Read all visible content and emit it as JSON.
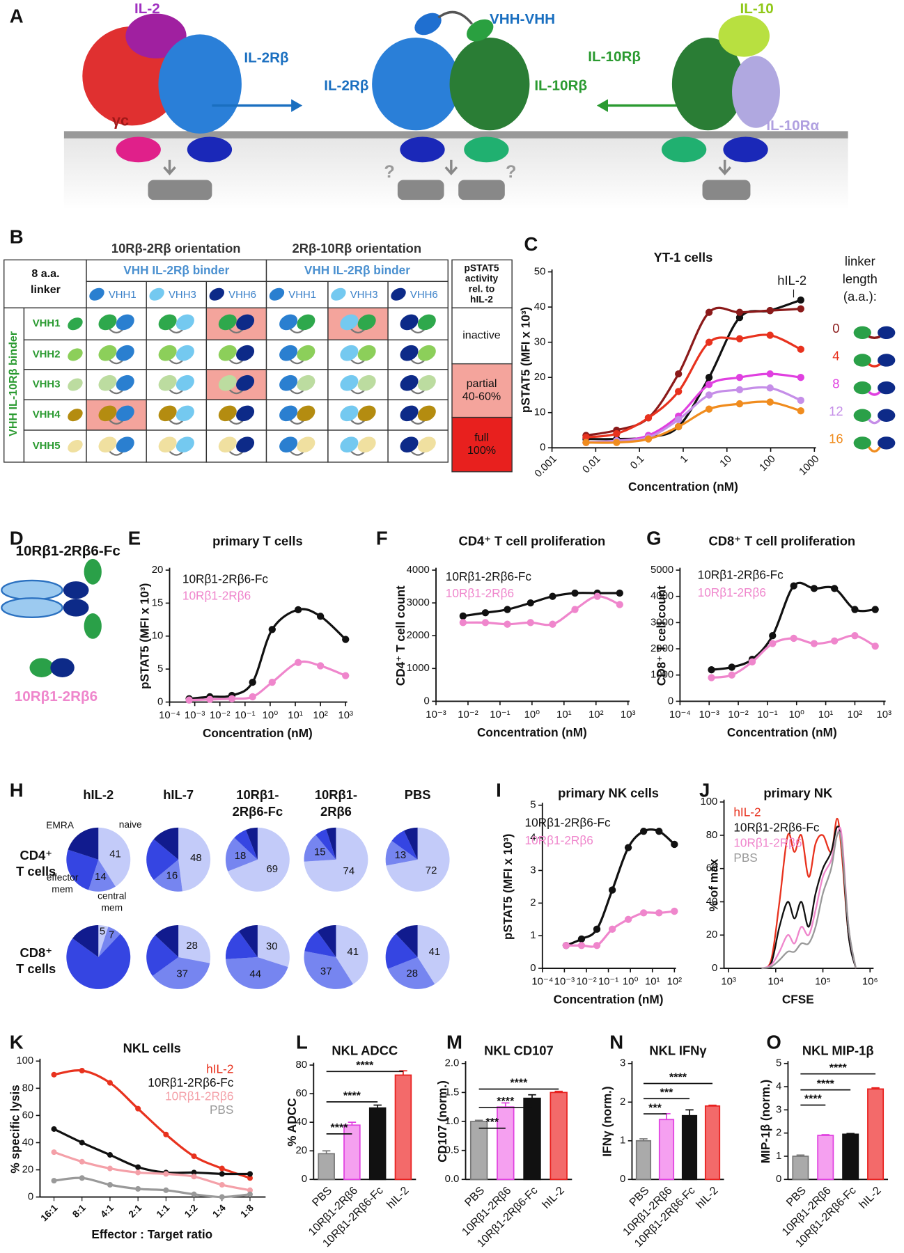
{
  "diagram_a": {
    "panel": "A",
    "labels": {
      "il2": "IL-2",
      "il2rb_left": "IL-2Rβ",
      "gc": "γc",
      "vhh": "VHH-VHH",
      "il2rb_mid": "IL-2Rβ",
      "il10rb_mid": "IL-10Rβ",
      "il10": "IL-10",
      "il10rb_right": "IL-10Rβ",
      "il10ra": "IL-10Rα"
    },
    "question_marks": [
      "?",
      "?"
    ]
  },
  "table_b": {
    "panel": "B",
    "corner": [
      "8 a.a.",
      "linker"
    ],
    "orientations": [
      "10Rβ-2Rβ orientation",
      "2Rβ-10Rβ orientation"
    ],
    "column_groups": [
      "VHH IL-2Rβ binder",
      "VHH IL-2Rβ binder"
    ],
    "columns": [
      "VHH1",
      "VHH3",
      "VHH6",
      "VHH1",
      "VHH3",
      "VHH6"
    ],
    "row_group": "VHH IL-10Rβ binder",
    "rows": [
      "VHH1",
      "VHH2",
      "VHH3",
      "VHH4",
      "VHH5"
    ],
    "highlight": [
      [
        false,
        false,
        true,
        false,
        true,
        false
      ],
      [
        false,
        false,
        false,
        false,
        false,
        false
      ],
      [
        false,
        false,
        true,
        false,
        false,
        false
      ],
      [
        true,
        false,
        false,
        false,
        false,
        false
      ],
      [
        false,
        false,
        false,
        false,
        false,
        false
      ]
    ],
    "legend": {
      "title": [
        "pSTAT5",
        "activity",
        "rel. to",
        "hIL-2"
      ],
      "entries": [
        [
          "inactive"
        ],
        [
          "partial",
          "40-60%"
        ],
        [
          "full",
          "100%"
        ]
      ]
    }
  },
  "panel_d": {
    "panel": "D",
    "labels": [
      "10Rβ1-2Rβ6-Fc",
      "10Rβ1-2Rβ6"
    ]
  },
  "chart_data": [
    {
      "type": "line",
      "panel": "C",
      "title": "YT-1 cells",
      "xlabel": "Concentration (nM)",
      "ylabel": "pSTAT5 (MFI x 10³)",
      "xscale": "log",
      "xlim": [
        0.001,
        1000
      ],
      "xticks": [
        0.001,
        0.01,
        0.1,
        1,
        10,
        100,
        1000
      ],
      "ylim": [
        0,
        50
      ],
      "yticks": [
        0,
        10,
        20,
        30,
        40,
        50
      ],
      "legend_title": [
        "linker",
        "length",
        "(a.a.):"
      ],
      "x": [
        0.006,
        0.03,
        0.16,
        0.78,
        3.9,
        19.5,
        97,
        488
      ],
      "series": [
        {
          "name": "hIL-2",
          "color": "#111111",
          "values": [
            2.5,
            2.5,
            3,
            6,
            20,
            37,
            39,
            42
          ]
        },
        {
          "name": "0",
          "color": "#8b1a1a",
          "values": [
            3.5,
            5,
            8.5,
            21,
            38.5,
            38.5,
            39,
            39.5
          ]
        },
        {
          "name": "4",
          "color": "#e8321e",
          "values": [
            3,
            4,
            8.5,
            16,
            30,
            31,
            32,
            28
          ]
        },
        {
          "name": "8",
          "color": "#e040e0",
          "values": [
            1.5,
            2,
            3.5,
            9,
            18,
            20,
            21,
            20
          ]
        },
        {
          "name": "12",
          "color": "#c58ee8",
          "values": [
            1.5,
            2,
            3,
            8,
            15,
            16.5,
            17,
            13.5
          ]
        },
        {
          "name": "16",
          "color": "#f08c1e",
          "values": [
            1.5,
            1.5,
            2.5,
            6,
            11,
            12.5,
            13,
            10.5
          ]
        }
      ]
    },
    {
      "type": "line",
      "panel": "E",
      "title": "primary T cells",
      "xlabel": "Concentration (nM)",
      "ylabel": "pSTAT5 (MFI x 10³)",
      "xscale": "log",
      "xlim": [
        0.0001,
        1000
      ],
      "xticks": [
        {
          "value": 0.0001,
          "label": "10⁻⁴"
        },
        {
          "value": 0.001,
          "label": "10⁻³"
        },
        {
          "value": 0.01,
          "label": "10⁻²"
        },
        {
          "value": 0.1,
          "label": "10⁻¹"
        },
        {
          "value": 1,
          "label": "10⁰"
        },
        {
          "value": 10,
          "label": "10¹"
        },
        {
          "value": 100,
          "label": "10²"
        },
        {
          "value": 1000,
          "label": "10³"
        }
      ],
      "ylim": [
        0,
        20
      ],
      "yticks": [
        0,
        5,
        10,
        15,
        20
      ],
      "x": [
        0.0006,
        0.004,
        0.03,
        0.2,
        1.2,
        13,
        100,
        1000
      ],
      "series": [
        {
          "name": "10Rβ1-2Rβ6-Fc",
          "color": "#111111",
          "values": [
            0.5,
            0.8,
            1,
            3,
            11,
            14,
            13,
            9.5
          ]
        },
        {
          "name": "10Rβ1-2Rβ6",
          "color": "#ef86cc",
          "values": [
            0.3,
            0.4,
            0.5,
            0.8,
            3,
            6,
            5.5,
            4
          ]
        }
      ]
    },
    {
      "type": "line",
      "panel": "F",
      "title": "CD4⁺ T cell proliferation",
      "xlabel": "Concentration (nM)",
      "ylabel": "CD4⁺ T cell count",
      "xscale": "log",
      "xlim": [
        0.001,
        1000
      ],
      "xticks": [
        {
          "value": 0.001,
          "label": "10⁻³"
        },
        {
          "value": 0.01,
          "label": "10⁻²"
        },
        {
          "value": 0.1,
          "label": "10⁻¹"
        },
        {
          "value": 1,
          "label": "10⁰"
        },
        {
          "value": 10,
          "label": "10¹"
        },
        {
          "value": 100,
          "label": "10²"
        },
        {
          "value": 1000,
          "label": "10³"
        }
      ],
      "ylim": [
        0,
        4000
      ],
      "yticks": [
        0,
        1000,
        2000,
        3000,
        4000
      ],
      "x": [
        0.007,
        0.035,
        0.17,
        0.9,
        4.4,
        22,
        110,
        550
      ],
      "series": [
        {
          "name": "10Rβ1-2Rβ6-Fc",
          "color": "#111111",
          "values": [
            2600,
            2700,
            2800,
            3000,
            3200,
            3300,
            3300,
            3300
          ]
        },
        {
          "name": "10Rβ1-2Rβ6",
          "color": "#ef86cc",
          "values": [
            2400,
            2400,
            2350,
            2400,
            2350,
            2800,
            3200,
            2950
          ]
        }
      ]
    },
    {
      "type": "line",
      "panel": "G",
      "title": "CD8⁺ T cell proliferation",
      "xlabel": "Concentration (nM)",
      "ylabel": "CD8⁺ T cell count",
      "xscale": "log",
      "xlim": [
        0.0001,
        1000
      ],
      "xticks": [
        {
          "value": 0.0001,
          "label": "10⁻⁴"
        },
        {
          "value": 0.001,
          "label": "10⁻³"
        },
        {
          "value": 0.01,
          "label": "10⁻²"
        },
        {
          "value": 0.1,
          "label": "10⁻¹"
        },
        {
          "value": 1,
          "label": "10⁰"
        },
        {
          "value": 10,
          "label": "10¹"
        },
        {
          "value": 100,
          "label": "10²"
        },
        {
          "value": 1000,
          "label": "10³"
        }
      ],
      "ylim": [
        0,
        5000
      ],
      "yticks": [
        0,
        1000,
        2000,
        3000,
        4000,
        5000
      ],
      "x": [
        0.0012,
        0.006,
        0.03,
        0.15,
        0.8,
        4,
        20,
        100,
        500
      ],
      "series": [
        {
          "name": "10Rβ1-2Rβ6-Fc",
          "color": "#111111",
          "values": [
            1200,
            1300,
            1600,
            2500,
            4400,
            4300,
            4300,
            3500,
            3500
          ]
        },
        {
          "name": "10Rβ1-2Rβ6",
          "color": "#ef86cc",
          "values": [
            900,
            1000,
            1500,
            2200,
            2400,
            2200,
            2300,
            2500,
            2100
          ]
        }
      ]
    },
    {
      "type": "pie",
      "panel": "H",
      "columns": [
        [
          "hIL-2"
        ],
        [
          "hIL-7"
        ],
        [
          "10Rβ1-",
          "2Rβ6-Fc"
        ],
        [
          "10Rβ1-",
          "2Rβ6"
        ],
        [
          "PBS"
        ]
      ],
      "rows": [
        [
          "CD4⁺",
          "T cells"
        ],
        [
          "CD8⁺",
          "T cells"
        ]
      ],
      "slice_names": [
        [
          "naive"
        ],
        [
          "central",
          "mem"
        ],
        [
          "effector",
          "mem"
        ],
        [
          "EMRA"
        ]
      ],
      "colors": [
        "#c3cbf9",
        "#7685f0",
        "#3545e2",
        "#111b8e"
      ],
      "values": [
        [
          [
            41,
            14,
            25,
            20
          ],
          [
            48,
            16,
            22,
            14
          ],
          [
            69,
            18,
            7,
            6
          ],
          [
            74,
            15,
            6,
            5
          ],
          [
            72,
            13,
            8,
            7
          ]
        ],
        [
          [
            5,
            7,
            73,
            15
          ],
          [
            28,
            37,
            22,
            13
          ],
          [
            30,
            44,
            16,
            10
          ],
          [
            41,
            37,
            12,
            10
          ],
          [
            41,
            28,
            19,
            12
          ]
        ]
      ]
    },
    {
      "type": "line",
      "panel": "I",
      "title": "primary NK cells",
      "xlabel": "Concentration (nM)",
      "ylabel": "pSTAT5 (MFI x 10³)",
      "xscale": "log",
      "xlim": [
        0.0001,
        100
      ],
      "xticks": [
        {
          "value": 0.0001,
          "label": "10⁻⁴"
        },
        {
          "value": 0.001,
          "label": "10⁻³"
        },
        {
          "value": 0.01,
          "label": "10⁻²"
        },
        {
          "value": 0.1,
          "label": "10⁻¹"
        },
        {
          "value": 1,
          "label": "10⁰"
        },
        {
          "value": 10,
          "label": "10¹"
        },
        {
          "value": 100,
          "label": "10²"
        }
      ],
      "ylim": [
        0,
        5
      ],
      "yticks": [
        0,
        1,
        2,
        3,
        4,
        5
      ],
      "x": [
        0.0012,
        0.006,
        0.03,
        0.15,
        0.8,
        4,
        20,
        100
      ],
      "series": [
        {
          "name": "10Rβ1-2Rβ6-Fc",
          "color": "#111111",
          "values": [
            0.7,
            0.9,
            1.2,
            2.4,
            3.7,
            4.2,
            4.2,
            3.8
          ]
        },
        {
          "name": "10Rβ1-2Rβ6",
          "color": "#ef86cc",
          "values": [
            0.7,
            0.7,
            0.7,
            1.2,
            1.5,
            1.7,
            1.7,
            1.75
          ]
        }
      ]
    },
    {
      "type": "line",
      "panel": "J",
      "title": "primary NK",
      "xlabel": "CFSE",
      "ylabel": "% of max",
      "markers": false,
      "xscale": "log",
      "xlim": [
        800,
        1100000
      ],
      "xticks": [
        {
          "value": 1000,
          "label": "10³"
        },
        {
          "value": 10000,
          "label": "10⁴"
        },
        {
          "value": 100000,
          "label": "10⁵"
        },
        {
          "value": 1000000,
          "label": "10⁶"
        }
      ],
      "ylim": [
        0,
        100
      ],
      "yticks": [
        0,
        20,
        40,
        60,
        80,
        100
      ],
      "x": [
        5000,
        8000,
        12000,
        18000,
        25000,
        35000,
        50000,
        70000,
        100000,
        150000,
        200000,
        250000,
        350000,
        500000
      ],
      "series": [
        {
          "name": "hIL-2",
          "color": "#e8321e",
          "values": [
            0,
            5,
            40,
            80,
            70,
            80,
            55,
            75,
            80,
            70,
            90,
            70,
            20,
            0
          ]
        },
        {
          "name": "10Rβ1-2Rβ6-Fc",
          "color": "#111111",
          "values": [
            0,
            3,
            25,
            40,
            30,
            40,
            25,
            45,
            60,
            70,
            85,
            75,
            20,
            0
          ]
        },
        {
          "name": "10Rβ1-2Rβ6",
          "color": "#ef86cc",
          "values": [
            0,
            2,
            10,
            20,
            15,
            25,
            20,
            35,
            55,
            65,
            80,
            80,
            25,
            0
          ]
        },
        {
          "name": "PBS",
          "color": "#999999",
          "values": [
            0,
            1,
            5,
            10,
            10,
            15,
            15,
            25,
            45,
            60,
            80,
            75,
            25,
            0
          ]
        }
      ]
    },
    {
      "type": "line",
      "panel": "K",
      "title": "NKL cells",
      "xlabel": "Effector : Target ratio",
      "ylabel": "% specific lysis",
      "categories": [
        "16:1",
        "8:1",
        "4:1",
        "2:1",
        "1:1",
        "1:2",
        "1:4",
        "1:8"
      ],
      "ylim": [
        0,
        100
      ],
      "yticks": [
        0,
        20,
        40,
        60,
        80,
        100
      ],
      "series": [
        {
          "name": "hIL-2",
          "color": "#e8321e",
          "values": [
            90,
            93,
            84,
            65,
            46,
            30,
            21,
            14
          ]
        },
        {
          "name": "10Rβ1-2Rβ6-Fc",
          "color": "#111111",
          "values": [
            50,
            40,
            31,
            22,
            18,
            18,
            17,
            17
          ]
        },
        {
          "name": "10Rβ1-2Rβ6",
          "color": "#f4a0a8",
          "values": [
            33,
            26,
            21,
            18,
            17,
            15,
            9,
            5
          ]
        },
        {
          "name": "PBS",
          "color": "#999999",
          "values": [
            12,
            14,
            9,
            6,
            5,
            2,
            0,
            2
          ]
        }
      ]
    },
    {
      "type": "bar",
      "panel": "L",
      "title": "NKL ADCC",
      "ylabel": "% ADCC",
      "categories": [
        "PBS",
        "10Rβ1-2Rβ6",
        "10Rβ1-2Rβ6-Fc",
        "hIL-2"
      ],
      "values": [
        18,
        38,
        50,
        73
      ],
      "errors": [
        2,
        2,
        2,
        3
      ],
      "colors": [
        "#aaaaaa",
        "#f5a0f0",
        "#111111",
        "#f36a6a"
      ],
      "edge_colors": [
        "#777777",
        "#e040e0",
        "#111111",
        "#e8201e"
      ],
      "ylim": [
        0,
        80
      ],
      "yticks": [
        0,
        20,
        40,
        60,
        80
      ],
      "significance": [
        "****",
        "****",
        "****"
      ]
    },
    {
      "type": "bar",
      "panel": "M",
      "title": "NKL CD107",
      "ylabel": "CD107 (norm.)",
      "categories": [
        "PBS",
        "10Rβ1-2Rβ6",
        "10Rβ1-2Rβ6-Fc",
        "hIL-2"
      ],
      "values": [
        1.0,
        1.25,
        1.4,
        1.5
      ],
      "errors": [
        0.02,
        0.07,
        0.06,
        0.02
      ],
      "colors": [
        "#aaaaaa",
        "#f5a0f0",
        "#111111",
        "#f36a6a"
      ],
      "edge_colors": [
        "#777777",
        "#e040e0",
        "#111111",
        "#e8201e"
      ],
      "ylim": [
        0,
        2
      ],
      "yticks": [
        {
          "value": 0,
          "label": "0.0"
        },
        {
          "value": 0.5,
          "label": "0.5"
        },
        {
          "value": 1,
          "label": "1.0"
        },
        {
          "value": 1.5,
          "label": "1.5"
        },
        {
          "value": 2,
          "label": "2.0"
        }
      ],
      "significance": [
        "***",
        "****",
        "****"
      ]
    },
    {
      "type": "bar",
      "panel": "N",
      "title": "NKL IFNγ",
      "ylabel": "IFNγ (norm.)",
      "categories": [
        "PBS",
        "10Rβ1-2Rβ6",
        "10Rβ1-2Rβ6-Fc",
        "hIL-2"
      ],
      "values": [
        1.0,
        1.55,
        1.65,
        1.9
      ],
      "errors": [
        0.05,
        0.15,
        0.15,
        0.02
      ],
      "colors": [
        "#aaaaaa",
        "#f5a0f0",
        "#111111",
        "#f36a6a"
      ],
      "edge_colors": [
        "#777777",
        "#e040e0",
        "#111111",
        "#e8201e"
      ],
      "ylim": [
        0,
        3
      ],
      "yticks": [
        0,
        1,
        2,
        3
      ],
      "significance": [
        "***",
        "***",
        "****"
      ]
    },
    {
      "type": "bar",
      "panel": "O",
      "title": "NKL MIP-1β",
      "ylabel": "MIP-1β (norm.)",
      "categories": [
        "PBS",
        "10Rβ1-2Rβ6",
        "10Rβ1-2Rβ6-Fc",
        "hIL-2"
      ],
      "values": [
        1.0,
        1.9,
        1.95,
        3.9
      ],
      "errors": [
        0.05,
        0.03,
        0.03,
        0.05
      ],
      "colors": [
        "#aaaaaa",
        "#f5a0f0",
        "#111111",
        "#f36a6a"
      ],
      "edge_colors": [
        "#777777",
        "#e040e0",
        "#111111",
        "#e8201e"
      ],
      "ylim": [
        0,
        5
      ],
      "yticks": [
        0,
        1,
        2,
        3,
        4,
        5
      ],
      "significance": [
        "****",
        "****",
        "****"
      ]
    }
  ]
}
